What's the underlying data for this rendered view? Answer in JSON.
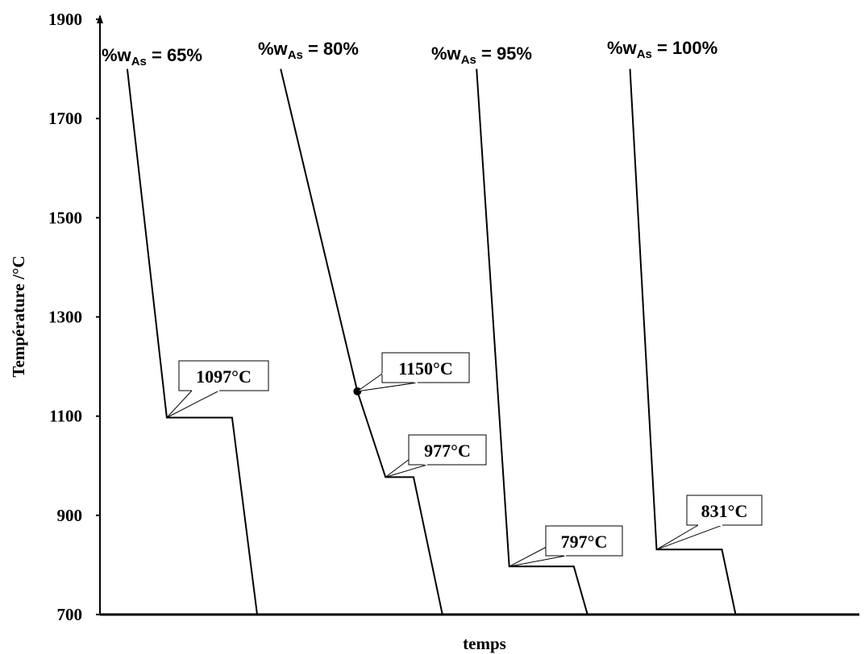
{
  "chart_data": {
    "type": "line",
    "title": "",
    "xlabel": "temps",
    "ylabel": "Température /°C",
    "ylim": [
      700,
      1900
    ],
    "yticks": [
      700,
      900,
      1100,
      1300,
      1500,
      1700,
      1900
    ],
    "xlim": [
      0,
      100
    ],
    "grid": false,
    "series": [
      {
        "label": {
          "prefix": "%w",
          "sub": "As",
          "suffix": " = 65%"
        },
        "points": [
          [
            3.6,
            1800
          ],
          [
            8.8,
            1097
          ],
          [
            17.4,
            1097
          ],
          [
            20.7,
            700
          ]
        ]
      },
      {
        "label": {
          "prefix": "%w",
          "sub": "As",
          "suffix": " = 80%"
        },
        "points": [
          [
            23.8,
            1800
          ],
          [
            33.9,
            1150
          ],
          [
            37.6,
            977
          ],
          [
            41.3,
            977
          ],
          [
            45.1,
            700
          ]
        ]
      },
      {
        "label": {
          "prefix": "%w",
          "sub": "As",
          "suffix": " = 95%"
        },
        "points": [
          [
            49.6,
            1800
          ],
          [
            53.9,
            797
          ],
          [
            62.4,
            797
          ],
          [
            64.2,
            700
          ]
        ]
      },
      {
        "label": {
          "prefix": "%w",
          "sub": "As",
          "suffix": " = 100%"
        },
        "points": [
          [
            69.8,
            1800
          ],
          [
            73.3,
            831
          ],
          [
            81.9,
            831
          ],
          [
            83.7,
            700
          ]
        ]
      }
    ],
    "marker": {
      "x": 33.9,
      "y": 1150
    },
    "annotations": [
      {
        "text": "1097°C",
        "x": 8.8,
        "y": 1097
      },
      {
        "text": "1150°C",
        "x": 33.9,
        "y": 1150
      },
      {
        "text": "977°C",
        "x": 37.6,
        "y": 977
      },
      {
        "text": "797°C",
        "x": 53.9,
        "y": 797
      },
      {
        "text": "831°C",
        "x": 73.3,
        "y": 831
      }
    ]
  }
}
